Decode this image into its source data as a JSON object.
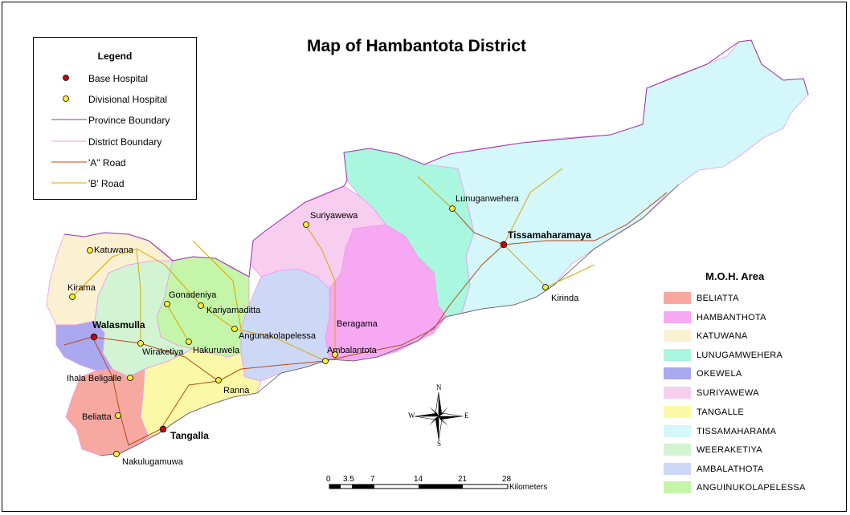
{
  "title": "Map of Hambantota District",
  "legend": {
    "title": "Legend",
    "items": [
      {
        "label": "Base Hospital",
        "symbol": "red-dot",
        "color": "#cc0000"
      },
      {
        "label": "Divisional Hospital",
        "symbol": "yellow-dot",
        "color": "#ffee33"
      },
      {
        "label": "Province Boundary",
        "symbol": "line",
        "color": "#9933aa"
      },
      {
        "label": "District Boundary",
        "symbol": "line",
        "color": "#ee99ee"
      },
      {
        "label": "'A\"  Road",
        "symbol": "line",
        "color": "#b84a1c"
      },
      {
        "label": "'B'   Road",
        "symbol": "line",
        "color": "#d9a800"
      }
    ]
  },
  "moh": {
    "title": "M.O.H. Area",
    "items": [
      {
        "label": "BELIATTA",
        "color": "#f7a8a0"
      },
      {
        "label": "HAMBANTHOTA",
        "color": "#f7a8f2"
      },
      {
        "label": "KATUWANA",
        "color": "#faf0d2"
      },
      {
        "label": "LUNUGAMWEHERA",
        "color": "#a8f7de"
      },
      {
        "label": "OKEWELA",
        "color": "#aaa8ee"
      },
      {
        "label": "SURIYAWEWA",
        "color": "#f7cdf0"
      },
      {
        "label": "TANGALLE",
        "color": "#fbf8a8"
      },
      {
        "label": "TISSAMAHARAMA",
        "color": "#d4f7fa"
      },
      {
        "label": "WEERAKETIYA",
        "color": "#d2f4d2"
      },
      {
        "label": "AMBALATHOTA",
        "color": "#cdd8f7"
      },
      {
        "label": "ANGUINUKOLAPELESSA",
        "color": "#c4f5a8"
      }
    ]
  },
  "places": {
    "tissamaharamaya": "Tissamaharamaya",
    "walasmulla": "Walasmulla",
    "tangalla": "Tangalla",
    "lunuganwehera": "Lunuganwehera",
    "suriyawewa": "Suriyawewa",
    "kirinda": "Kirinda",
    "katuwana": "Katuwana",
    "kirama": "Kirama",
    "gonadeniya": "Gonadeniya",
    "kariyamaditta": "Kariyamaditta",
    "angunakolapelessa": "Angunakolapelessa",
    "beragama": "Beragama",
    "ambalantota": "Ambalantota",
    "hakuruwela": "Hakuruwela",
    "wiraketiya": "Wiraketiya",
    "ihala_beligalle": "Ihala Beligalle",
    "ranna": "Ranna",
    "beliatta": "Beliatta",
    "nakulugamuwa": "Nakulugamuwa"
  },
  "scale": {
    "ticks": [
      "0",
      "3.5",
      "7",
      "14",
      "21",
      "28"
    ],
    "unit": "Kilometers"
  },
  "compass": {
    "n": "N",
    "s": "S",
    "e": "E",
    "w": "W"
  }
}
